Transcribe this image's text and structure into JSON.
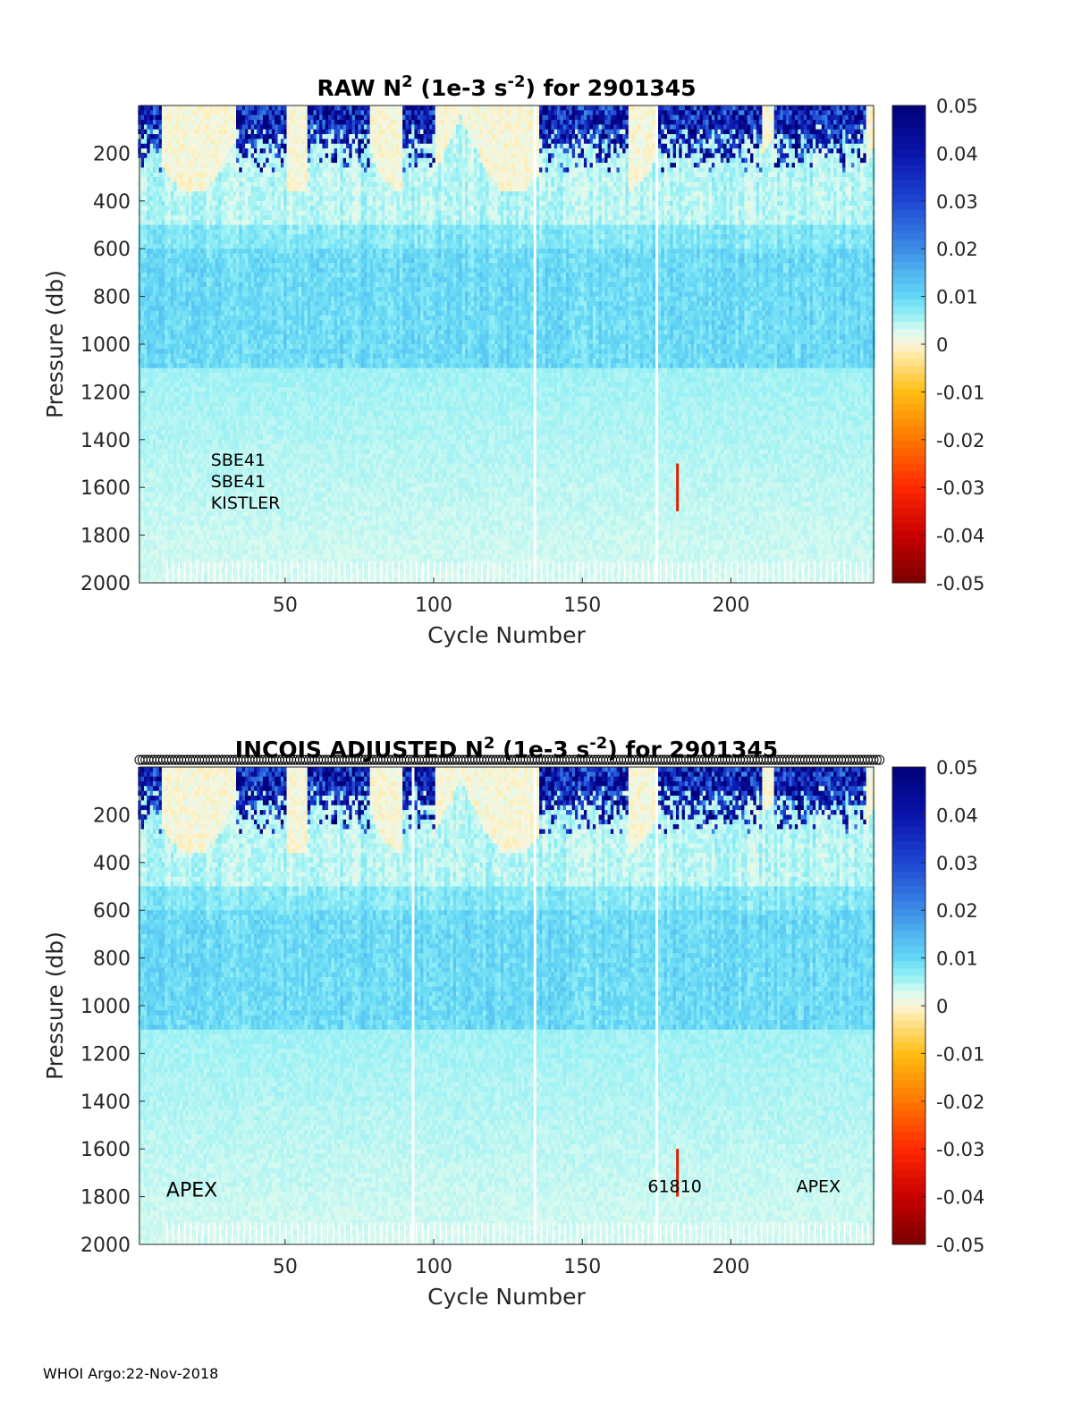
{
  "footer": "WHOI Argo:22-Nov-2018",
  "chart_data": [
    {
      "type": "heatmap",
      "title": "RAW N² (1e-3 s⁻²) for 2901345",
      "title_parts": {
        "prefix": "RAW N",
        "sup1": "2",
        "mid": " (1e-3 s",
        "sup2": "-2",
        "suffix": ") for 2901345"
      },
      "xlabel": "Cycle Number",
      "ylabel": "Pressure (db)",
      "xlim": [
        1,
        248
      ],
      "ylim": [
        2000,
        0
      ],
      "xticks": [
        50,
        100,
        150,
        200
      ],
      "yticks": [
        200,
        400,
        600,
        800,
        1000,
        1200,
        1400,
        1600,
        1800,
        2000
      ],
      "colorbar": {
        "min": -0.05,
        "max": 0.05,
        "ticks": [
          "0.05",
          "0.04",
          "0.03",
          "0.02",
          "0.01",
          "0",
          "-0.01",
          "-0.02",
          "-0.03",
          "-0.04",
          "-0.05"
        ]
      },
      "annotations": [
        {
          "text": "SBE41",
          "x": 25,
          "y": 1510
        },
        {
          "text": "SBE41",
          "x": 25,
          "y": 1600
        },
        {
          "text": "KISTLER",
          "x": 25,
          "y": 1690
        }
      ],
      "marker_row": false,
      "strong_stratification_cycles": [
        [
          1,
          8
        ],
        [
          34,
          50
        ],
        [
          58,
          78
        ],
        [
          90,
          100
        ],
        [
          136,
          165
        ],
        [
          175,
          210
        ],
        [
          215,
          245
        ]
      ],
      "negative_spike": {
        "cycle": 182,
        "p_from": 1500,
        "p_to": 1700,
        "value": -0.035
      },
      "missing_cycles": [
        134,
        175
      ],
      "notes": "Upper ~300 db shows N² up to ~0.05; deep ocean values ~0.005-0.012"
    },
    {
      "type": "heatmap",
      "title": "INCOIS ADJUSTED N² (1e-3 s⁻²) for 2901345",
      "title_parts": {
        "prefix": "INCOIS  ADJUSTED N",
        "sup1": "2",
        "mid": " (1e-3 s",
        "sup2": "-2",
        "suffix": ") for 2901345"
      },
      "xlabel": "Cycle Number",
      "ylabel": "Pressure (db)",
      "xlim": [
        1,
        248
      ],
      "ylim": [
        2000,
        0
      ],
      "xticks": [
        50,
        100,
        150,
        200
      ],
      "yticks": [
        200,
        400,
        600,
        800,
        1000,
        1200,
        1400,
        1600,
        1800,
        2000
      ],
      "colorbar": {
        "min": -0.05,
        "max": 0.05,
        "ticks": [
          "0.05",
          "0.04",
          "0.03",
          "0.02",
          "0.01",
          "0",
          "-0.01",
          "-0.02",
          "-0.03",
          "-0.04",
          "-0.05"
        ]
      },
      "annotations": [
        {
          "text": "APEX",
          "x": 10,
          "y": 1800,
          "big": true
        },
        {
          "text": "61810",
          "x": 172,
          "y": 1780
        },
        {
          "text": "APEX",
          "x": 222,
          "y": 1780
        }
      ],
      "marker_row": true,
      "strong_stratification_cycles": [
        [
          1,
          8
        ],
        [
          34,
          50
        ],
        [
          58,
          78
        ],
        [
          90,
          100
        ],
        [
          136,
          165
        ],
        [
          175,
          210
        ],
        [
          215,
          245
        ]
      ],
      "negative_spike": {
        "cycle": 182,
        "p_from": 1600,
        "p_to": 1800,
        "value": -0.035
      },
      "missing_cycles": [
        93,
        134,
        175
      ],
      "notes": "Adjusted profile nearly identical to raw"
    }
  ]
}
